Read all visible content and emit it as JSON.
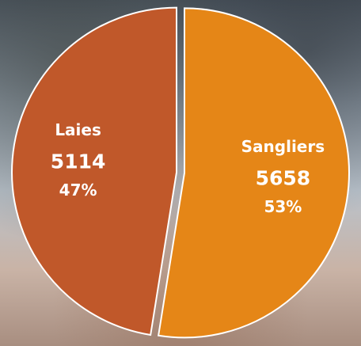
{
  "chart_data": {
    "type": "pie",
    "categories": [
      "Sangliers",
      "Laies"
    ],
    "values": [
      5658,
      5114
    ],
    "percent_labels": [
      "53%",
      "47%"
    ],
    "colors": [
      "#e58617",
      "#c0582a"
    ]
  }
}
